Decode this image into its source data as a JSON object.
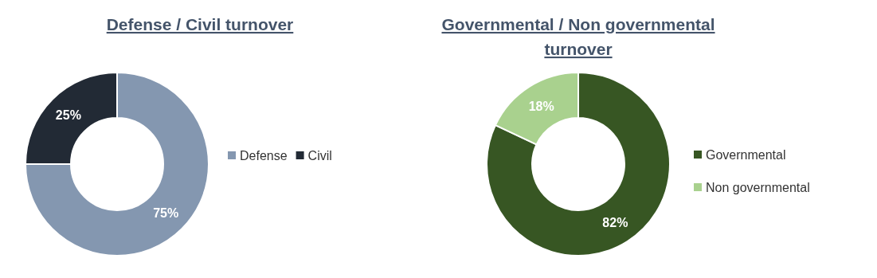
{
  "chart_data": [
    {
      "type": "donut",
      "title": "Defense / Civil turnover",
      "categories": [
        "Defense",
        "Civil"
      ],
      "values": [
        75,
        25
      ],
      "colors": [
        "#8497b0",
        "#222a35"
      ],
      "value_labels": [
        "75%",
        "25%"
      ],
      "legend": "right"
    },
    {
      "type": "donut",
      "title": "Governmental / Non governmental turnover",
      "categories": [
        "Governmental",
        "Non governmental"
      ],
      "values": [
        82,
        18
      ],
      "colors": [
        "#375623",
        "#a9d18e"
      ],
      "value_labels": [
        "82%",
        "18%"
      ],
      "legend": "right"
    }
  ]
}
